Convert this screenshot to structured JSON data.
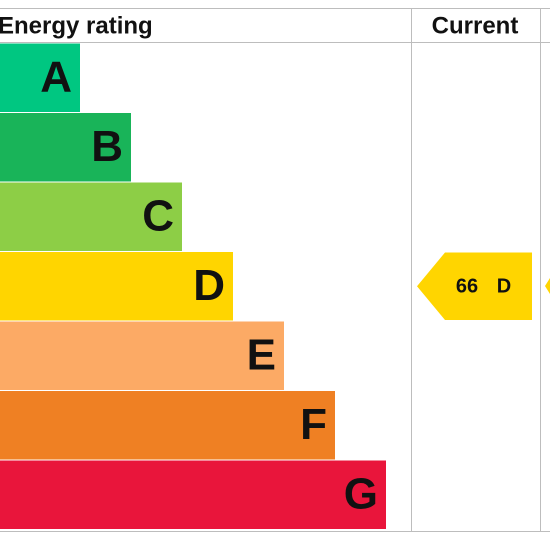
{
  "header": {
    "title": "Energy rating",
    "current": "Current"
  },
  "bands": [
    {
      "letter": "A",
      "color": "#00c781"
    },
    {
      "letter": "B",
      "color": "#19b459"
    },
    {
      "letter": "C",
      "color": "#8dce46"
    },
    {
      "letter": "D",
      "color": "#ffd500"
    },
    {
      "letter": "E",
      "color": "#fcaa65"
    },
    {
      "letter": "F",
      "color": "#ef8023"
    },
    {
      "letter": "G",
      "color": "#e9153b"
    }
  ],
  "current": {
    "score": 66,
    "band": "D",
    "color": "#ffd500"
  }
}
